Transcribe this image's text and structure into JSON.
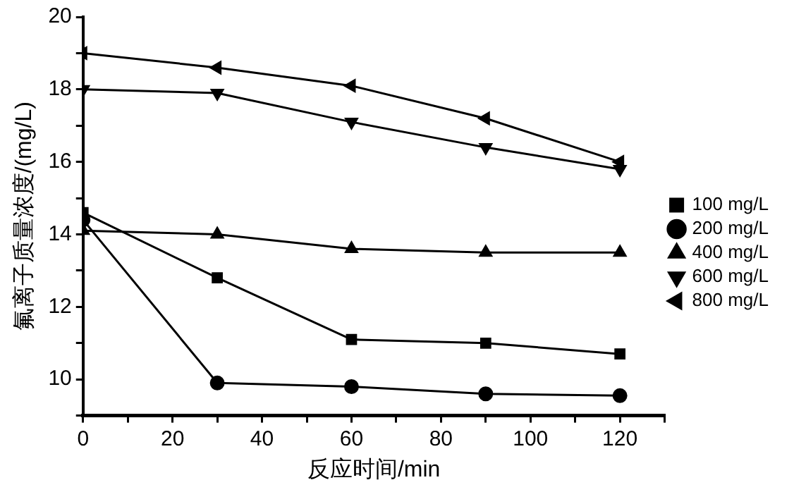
{
  "chart_data": {
    "type": "line",
    "xlabel": "反应时间/min",
    "ylabel": "氟离子质量浓度/(mg/L)",
    "x": [
      0,
      30,
      60,
      90,
      120
    ],
    "series": [
      {
        "name": "100 mg/L",
        "color": "#000000",
        "marker": "square",
        "values": [
          14.6,
          12.8,
          11.1,
          11.0,
          10.7
        ]
      },
      {
        "name": "200 mg/L",
        "color": "#000000",
        "marker": "circle",
        "values": [
          14.4,
          9.9,
          9.8,
          9.6,
          9.55
        ]
      },
      {
        "name": "400 mg/L",
        "color": "#000000",
        "marker": "triangle",
        "values": [
          14.1,
          14.0,
          13.6,
          13.5,
          13.5
        ]
      },
      {
        "name": "600 mg/L",
        "color": "#000000",
        "marker": "triangle-down",
        "values": [
          18.0,
          17.9,
          17.1,
          16.4,
          15.8
        ]
      },
      {
        "name": "800 mg/L",
        "color": "#000000",
        "marker": "triangle-left",
        "values": [
          19.0,
          18.6,
          18.1,
          17.2,
          16.0
        ]
      }
    ],
    "xlim": [
      0,
      130
    ],
    "xticks": [
      0,
      {
        "value": 10,
        "label": null
      },
      20,
      {
        "value": 30,
        "label": null
      },
      40,
      {
        "value": 50,
        "label": null
      },
      60,
      {
        "value": 70,
        "label": null
      },
      80,
      {
        "value": 90,
        "label": null
      },
      100,
      {
        "value": 110,
        "label": null
      },
      120,
      {
        "value": 130,
        "label": null
      }
    ],
    "ylim": [
      9,
      20
    ],
    "yticks": [
      {
        "value": 9,
        "label": null
      },
      10,
      {
        "value": 11,
        "label": null
      },
      12,
      {
        "value": 13,
        "label": null
      },
      14,
      {
        "value": 15,
        "label": null
      },
      16,
      {
        "value": 17,
        "label": null
      },
      18,
      {
        "value": 19,
        "label": null
      },
      20
    ],
    "legend": "right",
    "grid": false,
    "line_style": "solid"
  }
}
